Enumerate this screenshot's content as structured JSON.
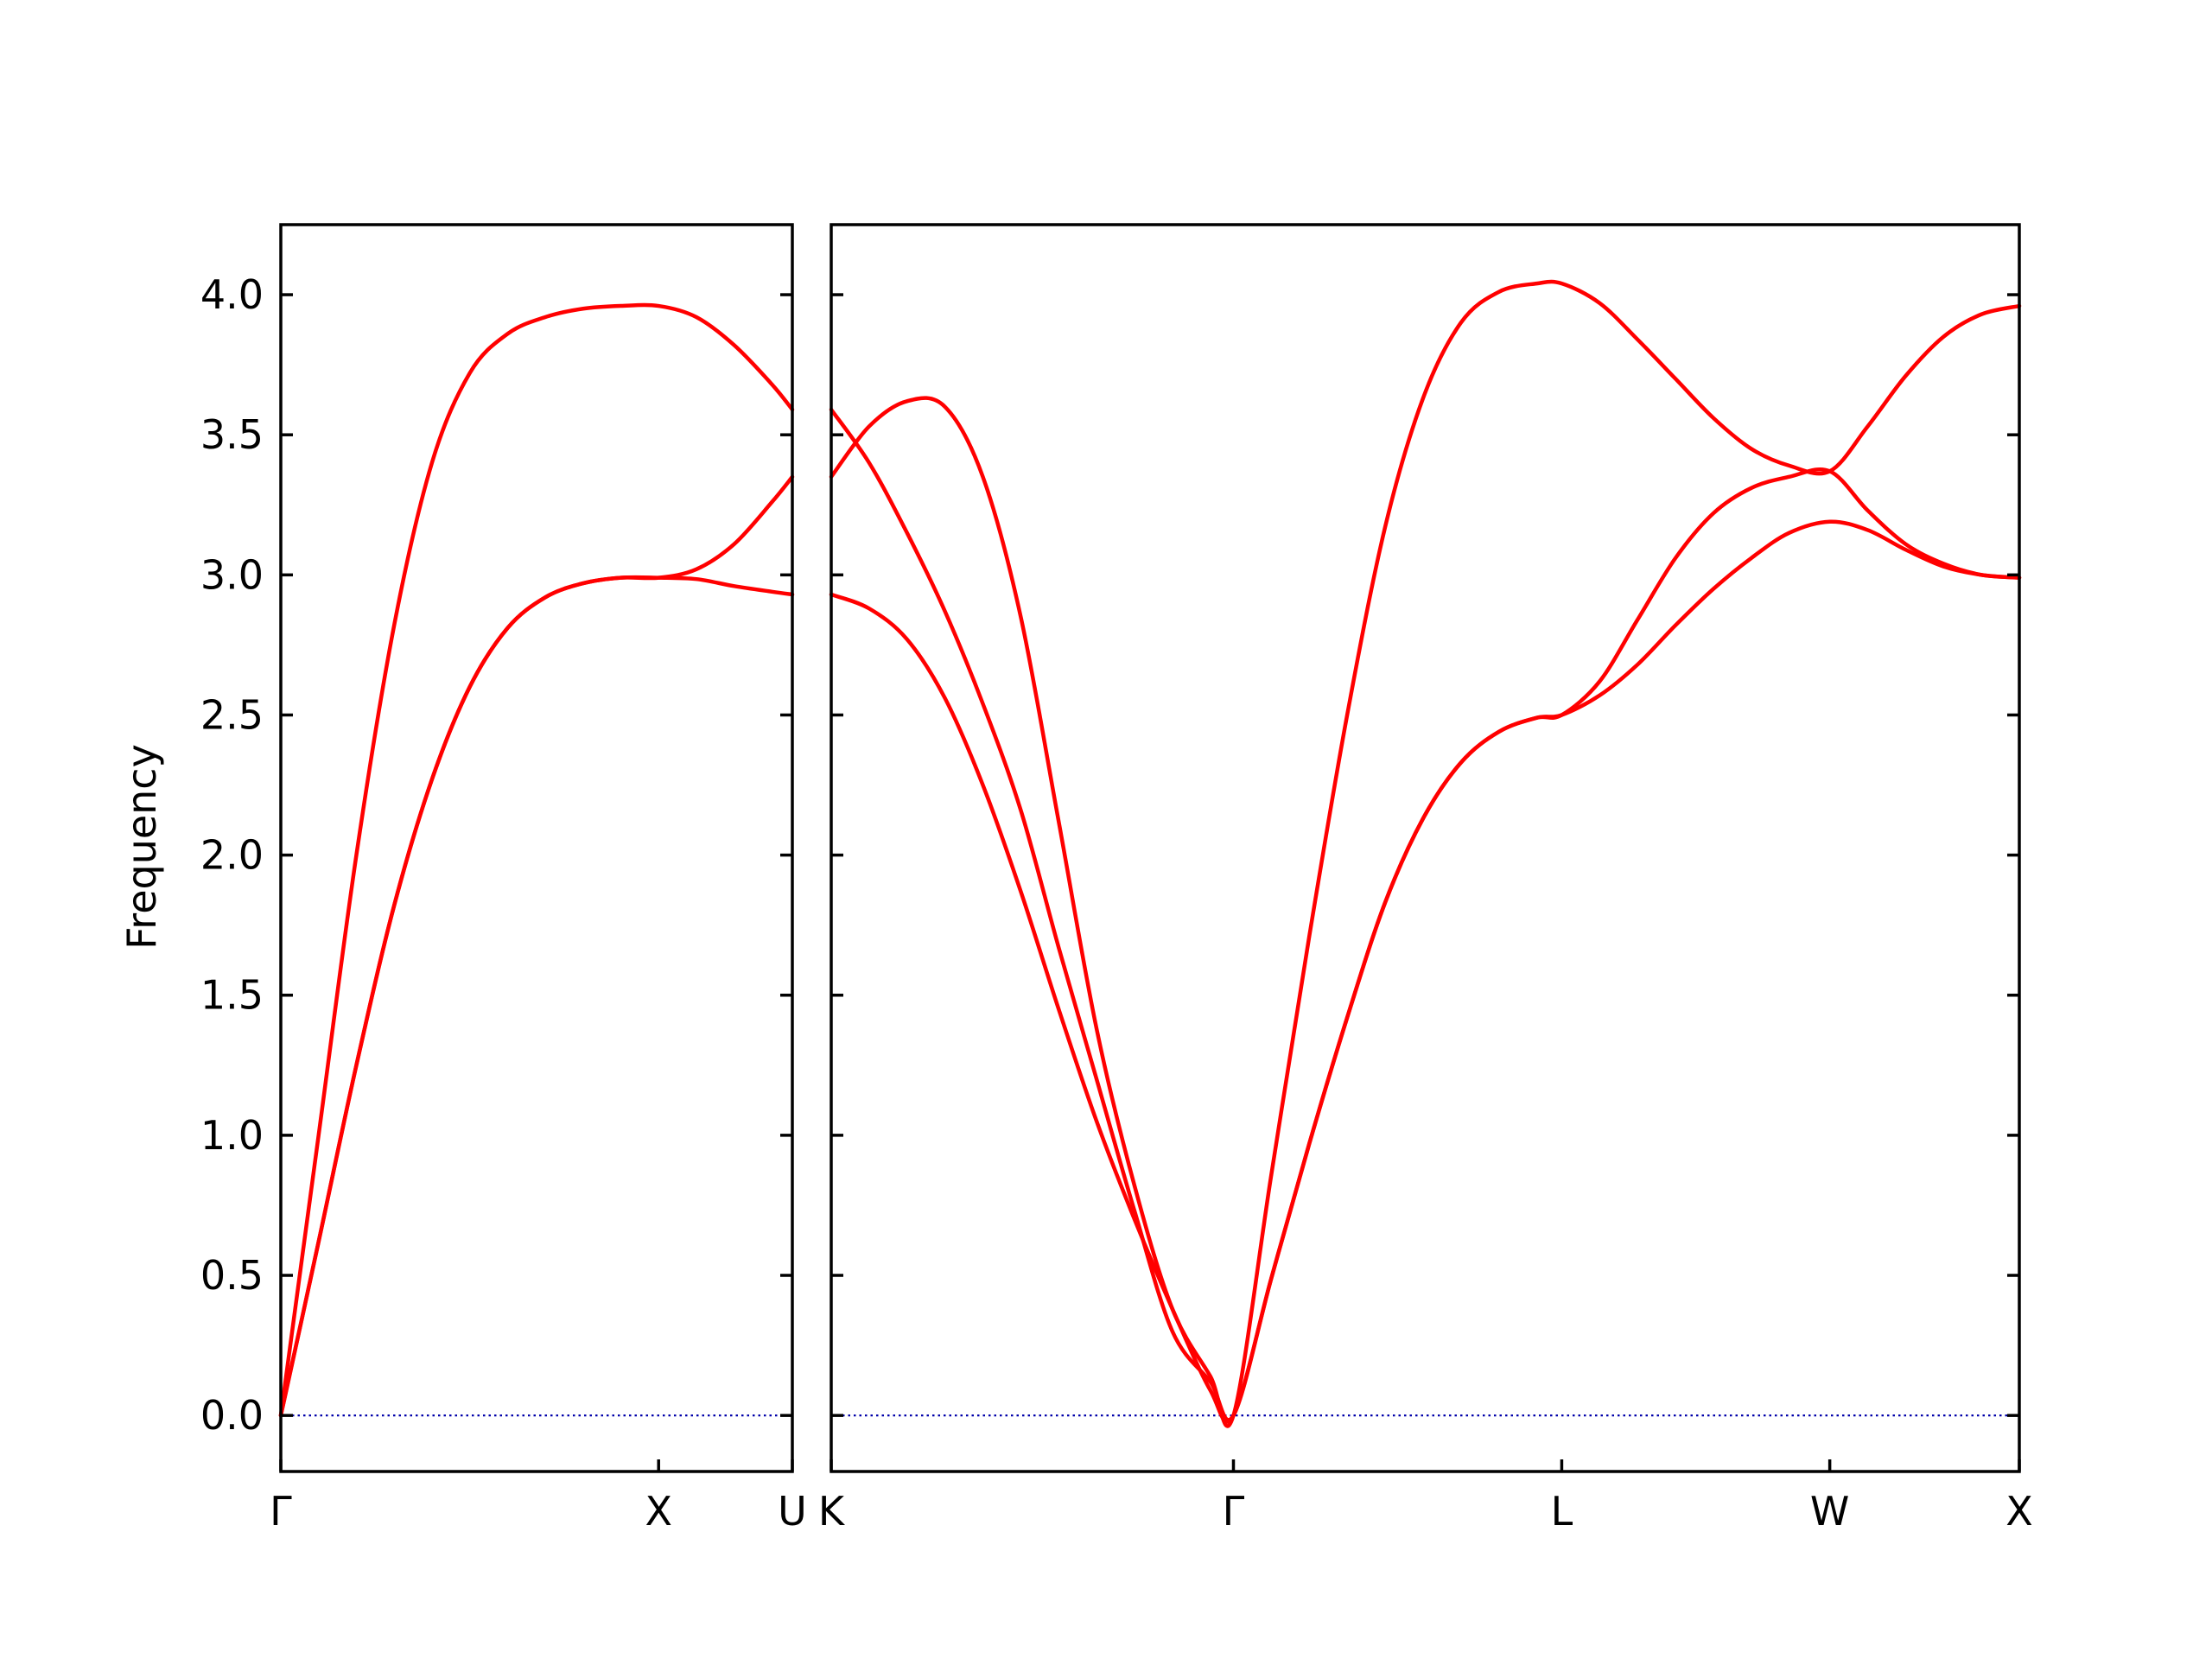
{
  "chart_data": {
    "type": "line",
    "ylabel": "Frequency",
    "ylim": [
      -0.2,
      4.25
    ],
    "y_ticks": [
      "0.0",
      "0.5",
      "1.0",
      "1.5",
      "2.0",
      "2.5",
      "3.0",
      "3.5",
      "4.0"
    ],
    "grid": false,
    "colors": {
      "bands": "#ff0000",
      "zero_line": "#0000aa",
      "axes": "#000000"
    },
    "panels": [
      {
        "path": "Γ-X-U",
        "x_ticks": [
          {
            "label": "Γ",
            "x": 0.0
          },
          {
            "label": "X",
            "x": 1.0
          },
          {
            "label": "U",
            "x": 1.354
          }
        ],
        "xlim": [
          0.0,
          1.354
        ],
        "series": [
          {
            "values": [
              [
                0,
                0
              ],
              [
                0.1,
                0.62
              ],
              [
                0.2,
                1.25
              ],
              [
                0.3,
                1.82
              ],
              [
                0.4,
                2.27
              ],
              [
                0.5,
                2.6
              ],
              [
                0.6,
                2.81
              ],
              [
                0.7,
                2.92
              ],
              [
                0.8,
                2.97
              ],
              [
                0.9,
                2.99
              ],
              [
                1.0,
                2.99
              ],
              [
                1.1,
                2.985
              ],
              [
                1.2,
                2.96
              ],
              [
                1.3,
                2.94
              ],
              [
                1.354,
                2.93
              ]
            ]
          },
          {
            "values": [
              [
                0,
                0
              ],
              [
                0.1,
                1.0
              ],
              [
                0.2,
                2.0
              ],
              [
                0.3,
                2.82
              ],
              [
                0.4,
                3.4
              ],
              [
                0.5,
                3.72
              ],
              [
                0.6,
                3.86
              ],
              [
                0.7,
                3.92
              ],
              [
                0.8,
                3.95
              ],
              [
                0.9,
                3.96
              ],
              [
                1.0,
                3.96
              ],
              [
                1.1,
                3.92
              ],
              [
                1.2,
                3.82
              ],
              [
                1.3,
                3.68
              ],
              [
                1.354,
                3.59
              ]
            ]
          },
          {
            "values": [
              [
                0,
                0
              ],
              [
                0.1,
                0.62
              ],
              [
                0.2,
                1.25
              ],
              [
                0.3,
                1.82
              ],
              [
                0.4,
                2.27
              ],
              [
                0.5,
                2.6
              ],
              [
                0.6,
                2.81
              ],
              [
                0.7,
                2.92
              ],
              [
                0.8,
                2.97
              ],
              [
                0.9,
                2.99
              ],
              [
                1.0,
                2.99
              ],
              [
                1.1,
                3.02
              ],
              [
                1.2,
                3.11
              ],
              [
                1.3,
                3.26
              ],
              [
                1.354,
                3.35
              ]
            ]
          }
        ]
      },
      {
        "path": "K-Γ-L-W-X",
        "x_ticks": [
          {
            "label": "K",
            "x": 0.0
          },
          {
            "label": "Γ",
            "x": 1.061
          },
          {
            "label": "L",
            "x": 1.927
          },
          {
            "label": "W",
            "x": 2.634
          },
          {
            "label": "X",
            "x": 3.134
          }
        ],
        "xlim": [
          0.0,
          3.134
        ],
        "series": [
          {
            "values": [
              [
                0,
                2.93
              ],
              [
                0.1,
                2.88
              ],
              [
                0.2,
                2.77
              ],
              [
                0.3,
                2.56
              ],
              [
                0.4,
                2.25
              ],
              [
                0.5,
                1.87
              ],
              [
                0.6,
                1.45
              ],
              [
                0.7,
                1.05
              ],
              [
                0.8,
                0.7
              ],
              [
                0.9,
                0.38
              ],
              [
                1.0,
                0.09
              ],
              [
                1.061,
                0
              ],
              [
                1.161,
                0.49
              ],
              [
                1.261,
                0.97
              ],
              [
                1.361,
                1.42
              ],
              [
                1.461,
                1.83
              ],
              [
                1.561,
                2.13
              ],
              [
                1.661,
                2.33
              ],
              [
                1.761,
                2.44
              ],
              [
                1.861,
                2.49
              ],
              [
                1.927,
                2.5
              ],
              [
                2.027,
                2.57
              ],
              [
                2.127,
                2.68
              ],
              [
                2.227,
                2.82
              ],
              [
                2.327,
                2.95
              ],
              [
                2.427,
                3.06
              ],
              [
                2.527,
                3.15
              ],
              [
                2.634,
                3.19
              ],
              [
                2.734,
                3.16
              ],
              [
                2.834,
                3.09
              ],
              [
                2.934,
                3.03
              ],
              [
                3.034,
                3.0
              ],
              [
                3.134,
                2.99
              ]
            ]
          },
          {
            "values": [
              [
                0,
                3.59
              ],
              [
                0.1,
                3.4
              ],
              [
                0.2,
                3.15
              ],
              [
                0.3,
                2.87
              ],
              [
                0.4,
                2.54
              ],
              [
                0.5,
                2.16
              ],
              [
                0.6,
                1.67
              ],
              [
                0.7,
                1.2
              ],
              [
                0.8,
                0.73
              ],
              [
                0.9,
                0.3
              ],
              [
                1.0,
                0.12
              ],
              [
                1.061,
                0
              ],
              [
                1.161,
                0.49
              ],
              [
                1.261,
                0.97
              ],
              [
                1.361,
                1.42
              ],
              [
                1.461,
                1.83
              ],
              [
                1.561,
                2.13
              ],
              [
                1.661,
                2.33
              ],
              [
                1.761,
                2.44
              ],
              [
                1.861,
                2.49
              ],
              [
                1.927,
                2.5
              ],
              [
                2.027,
                2.62
              ],
              [
                2.127,
                2.84
              ],
              [
                2.227,
                3.06
              ],
              [
                2.327,
                3.22
              ],
              [
                2.427,
                3.31
              ],
              [
                2.527,
                3.35
              ],
              [
                2.634,
                3.37
              ],
              [
                2.734,
                3.23
              ],
              [
                2.834,
                3.11
              ],
              [
                2.934,
                3.04
              ],
              [
                3.034,
                3.0
              ],
              [
                3.134,
                2.99
              ]
            ]
          },
          {
            "values": [
              [
                0,
                3.35
              ],
              [
                0.1,
                3.53
              ],
              [
                0.2,
                3.62
              ],
              [
                0.3,
                3.6
              ],
              [
                0.4,
                3.35
              ],
              [
                0.5,
                2.85
              ],
              [
                0.6,
                2.12
              ],
              [
                0.7,
                1.38
              ],
              [
                0.8,
                0.82
              ],
              [
                0.9,
                0.38
              ],
              [
                1.0,
                0.14
              ],
              [
                1.061,
                0
              ],
              [
                1.161,
                0.86
              ],
              [
                1.261,
                1.71
              ],
              [
                1.361,
                2.5
              ],
              [
                1.461,
                3.17
              ],
              [
                1.561,
                3.63
              ],
              [
                1.661,
                3.9
              ],
              [
                1.761,
                4.01
              ],
              [
                1.861,
                4.04
              ],
              [
                1.927,
                4.04
              ],
              [
                2.027,
                3.97
              ],
              [
                2.127,
                3.84
              ],
              [
                2.227,
                3.7
              ],
              [
                2.327,
                3.56
              ],
              [
                2.427,
                3.45
              ],
              [
                2.527,
                3.39
              ],
              [
                2.634,
                3.37
              ],
              [
                2.734,
                3.53
              ],
              [
                2.834,
                3.71
              ],
              [
                2.934,
                3.85
              ],
              [
                3.034,
                3.93
              ],
              [
                3.134,
                3.96
              ]
            ]
          }
        ]
      }
    ]
  }
}
